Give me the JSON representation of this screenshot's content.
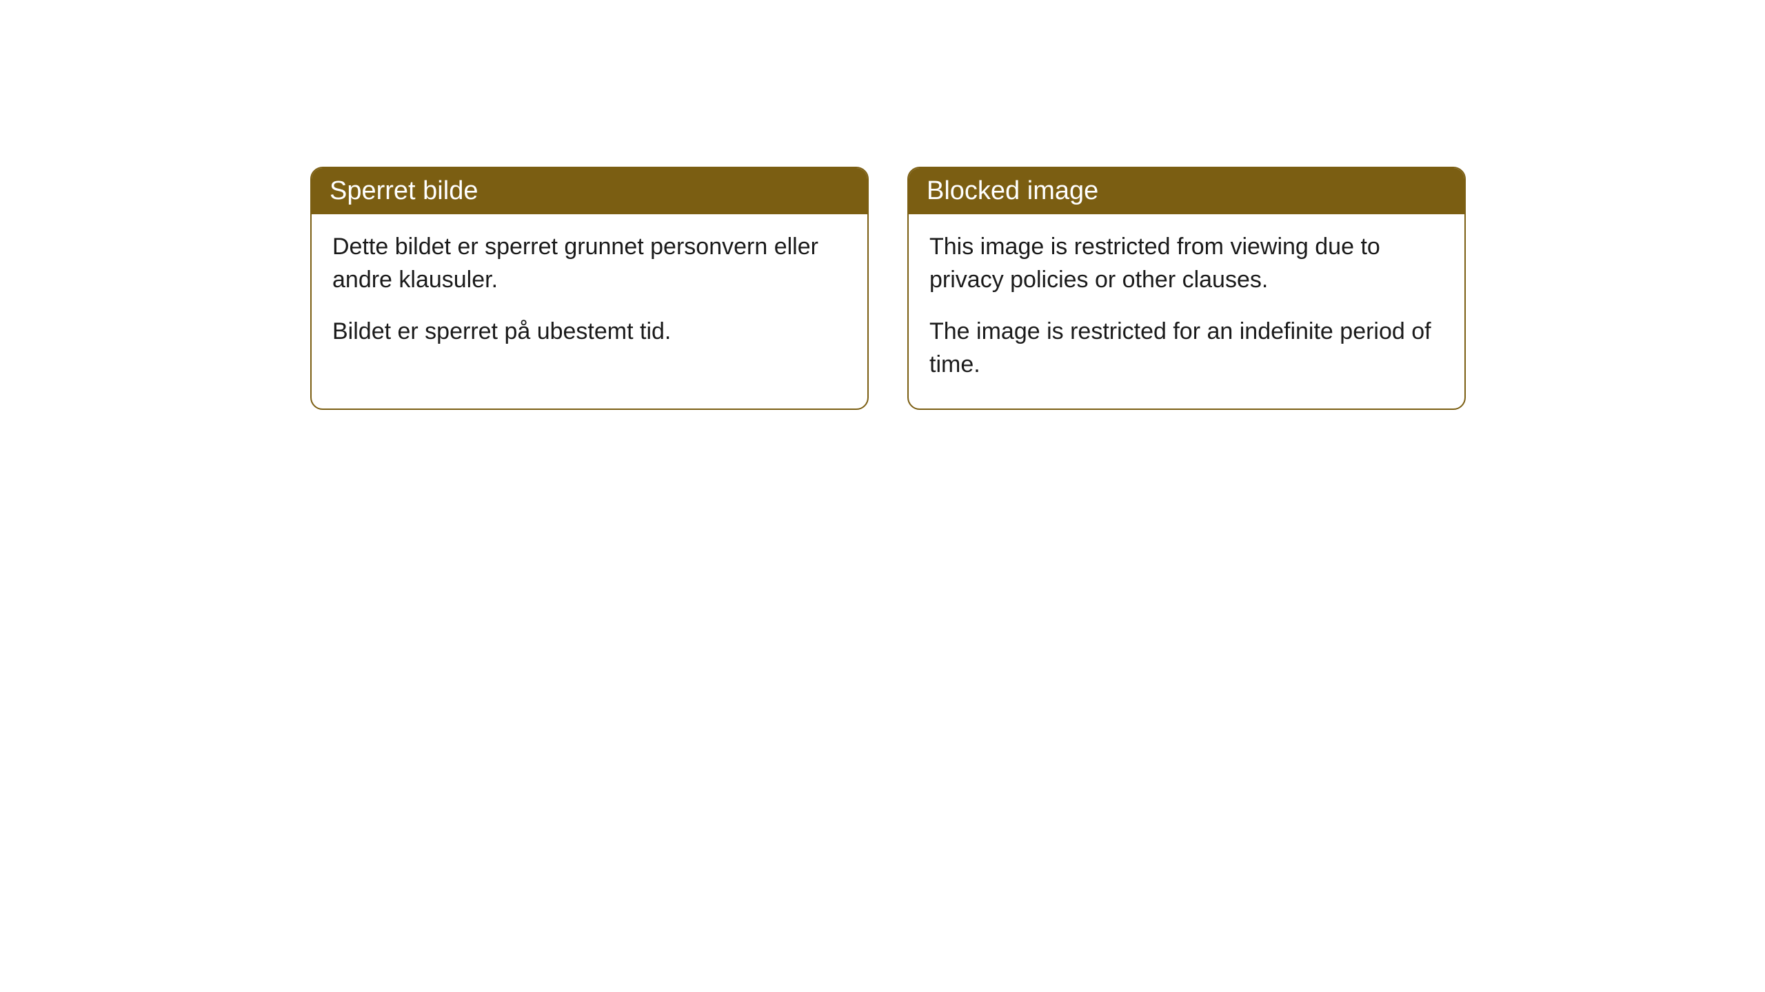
{
  "cards": [
    {
      "title": "Sperret bilde",
      "paragraph1": "Dette bildet er sperret grunnet personvern eller andre klausuler.",
      "paragraph2": "Bildet er sperret på ubestemt tid."
    },
    {
      "title": "Blocked image",
      "paragraph1": "This image is restricted from viewing due to privacy policies or other clauses.",
      "paragraph2": "The image is restricted for an indefinite period of time."
    }
  ],
  "style": {
    "header_bg_color": "#7b5e12",
    "header_text_color": "#ffffff",
    "border_color": "#7b5e12",
    "body_bg_color": "#ffffff",
    "body_text_color": "#1a1a1a",
    "border_radius": 18,
    "title_fontsize": 38,
    "body_fontsize": 34
  }
}
